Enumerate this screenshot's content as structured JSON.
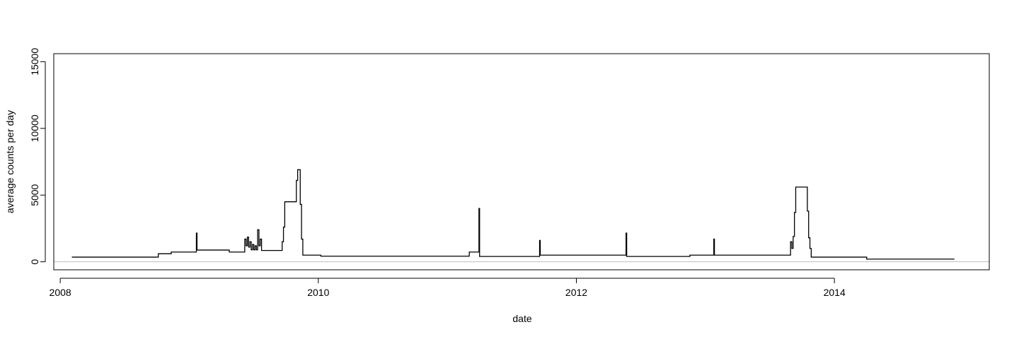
{
  "chart_data": {
    "type": "line",
    "title": "",
    "xlabel": "date",
    "ylabel": "average counts per day",
    "xlim": [
      2007.95,
      2015.2
    ],
    "ylim": [
      -600,
      15600
    ],
    "x_ticks": [
      {
        "value": 2008,
        "label": "2008"
      },
      {
        "value": 2010,
        "label": "2010"
      },
      {
        "value": 2012,
        "label": "2012"
      },
      {
        "value": 2014,
        "label": "2014"
      }
    ],
    "y_ticks": [
      {
        "value": 0,
        "label": "0"
      },
      {
        "value": 5000,
        "label": "5000"
      },
      {
        "value": 10000,
        "label": "10000"
      },
      {
        "value": 15000,
        "label": "15000"
      }
    ],
    "reference_line": {
      "y": 0,
      "color": "#bebebe"
    },
    "grid": false,
    "series": [
      {
        "color": "#000000",
        "step": true,
        "points": [
          [
            2008.09,
            350
          ],
          [
            2008.75,
            350
          ],
          [
            2008.76,
            600
          ],
          [
            2008.85,
            600
          ],
          [
            2008.86,
            730
          ],
          [
            2009.05,
            730
          ],
          [
            2009.055,
            2150
          ],
          [
            2009.06,
            880
          ],
          [
            2009.3,
            880
          ],
          [
            2009.31,
            730
          ],
          [
            2009.42,
            730
          ],
          [
            2009.43,
            1700
          ],
          [
            2009.44,
            1200
          ],
          [
            2009.45,
            1850
          ],
          [
            2009.46,
            1100
          ],
          [
            2009.47,
            1500
          ],
          [
            2009.48,
            900
          ],
          [
            2009.49,
            1300
          ],
          [
            2009.5,
            900
          ],
          [
            2009.51,
            1200
          ],
          [
            2009.52,
            900
          ],
          [
            2009.53,
            2400
          ],
          [
            2009.54,
            1200
          ],
          [
            2009.55,
            1700
          ],
          [
            2009.56,
            850
          ],
          [
            2009.71,
            850
          ],
          [
            2009.72,
            1500
          ],
          [
            2009.73,
            2600
          ],
          [
            2009.74,
            4500
          ],
          [
            2009.82,
            4500
          ],
          [
            2009.83,
            6100
          ],
          [
            2009.84,
            6900
          ],
          [
            2009.86,
            4300
          ],
          [
            2009.87,
            1700
          ],
          [
            2009.88,
            500
          ],
          [
            2010.01,
            500
          ],
          [
            2010.02,
            420
          ],
          [
            2011.16,
            420
          ],
          [
            2011.17,
            730
          ],
          [
            2011.24,
            730
          ],
          [
            2011.245,
            4000
          ],
          [
            2011.25,
            400
          ],
          [
            2011.71,
            400
          ],
          [
            2011.715,
            1600
          ],
          [
            2011.72,
            500
          ],
          [
            2012.38,
            500
          ],
          [
            2012.385,
            2150
          ],
          [
            2012.39,
            400
          ],
          [
            2012.87,
            400
          ],
          [
            2012.88,
            500
          ],
          [
            2013.06,
            500
          ],
          [
            2013.065,
            1700
          ],
          [
            2013.07,
            500
          ],
          [
            2013.65,
            500
          ],
          [
            2013.66,
            1500
          ],
          [
            2013.67,
            1000
          ],
          [
            2013.68,
            1900
          ],
          [
            2013.69,
            3700
          ],
          [
            2013.7,
            5600
          ],
          [
            2013.78,
            5600
          ],
          [
            2013.79,
            3800
          ],
          [
            2013.8,
            1800
          ],
          [
            2013.81,
            1000
          ],
          [
            2013.82,
            350
          ],
          [
            2014.24,
            350
          ],
          [
            2014.25,
            200
          ],
          [
            2014.93,
            200
          ]
        ]
      }
    ]
  }
}
